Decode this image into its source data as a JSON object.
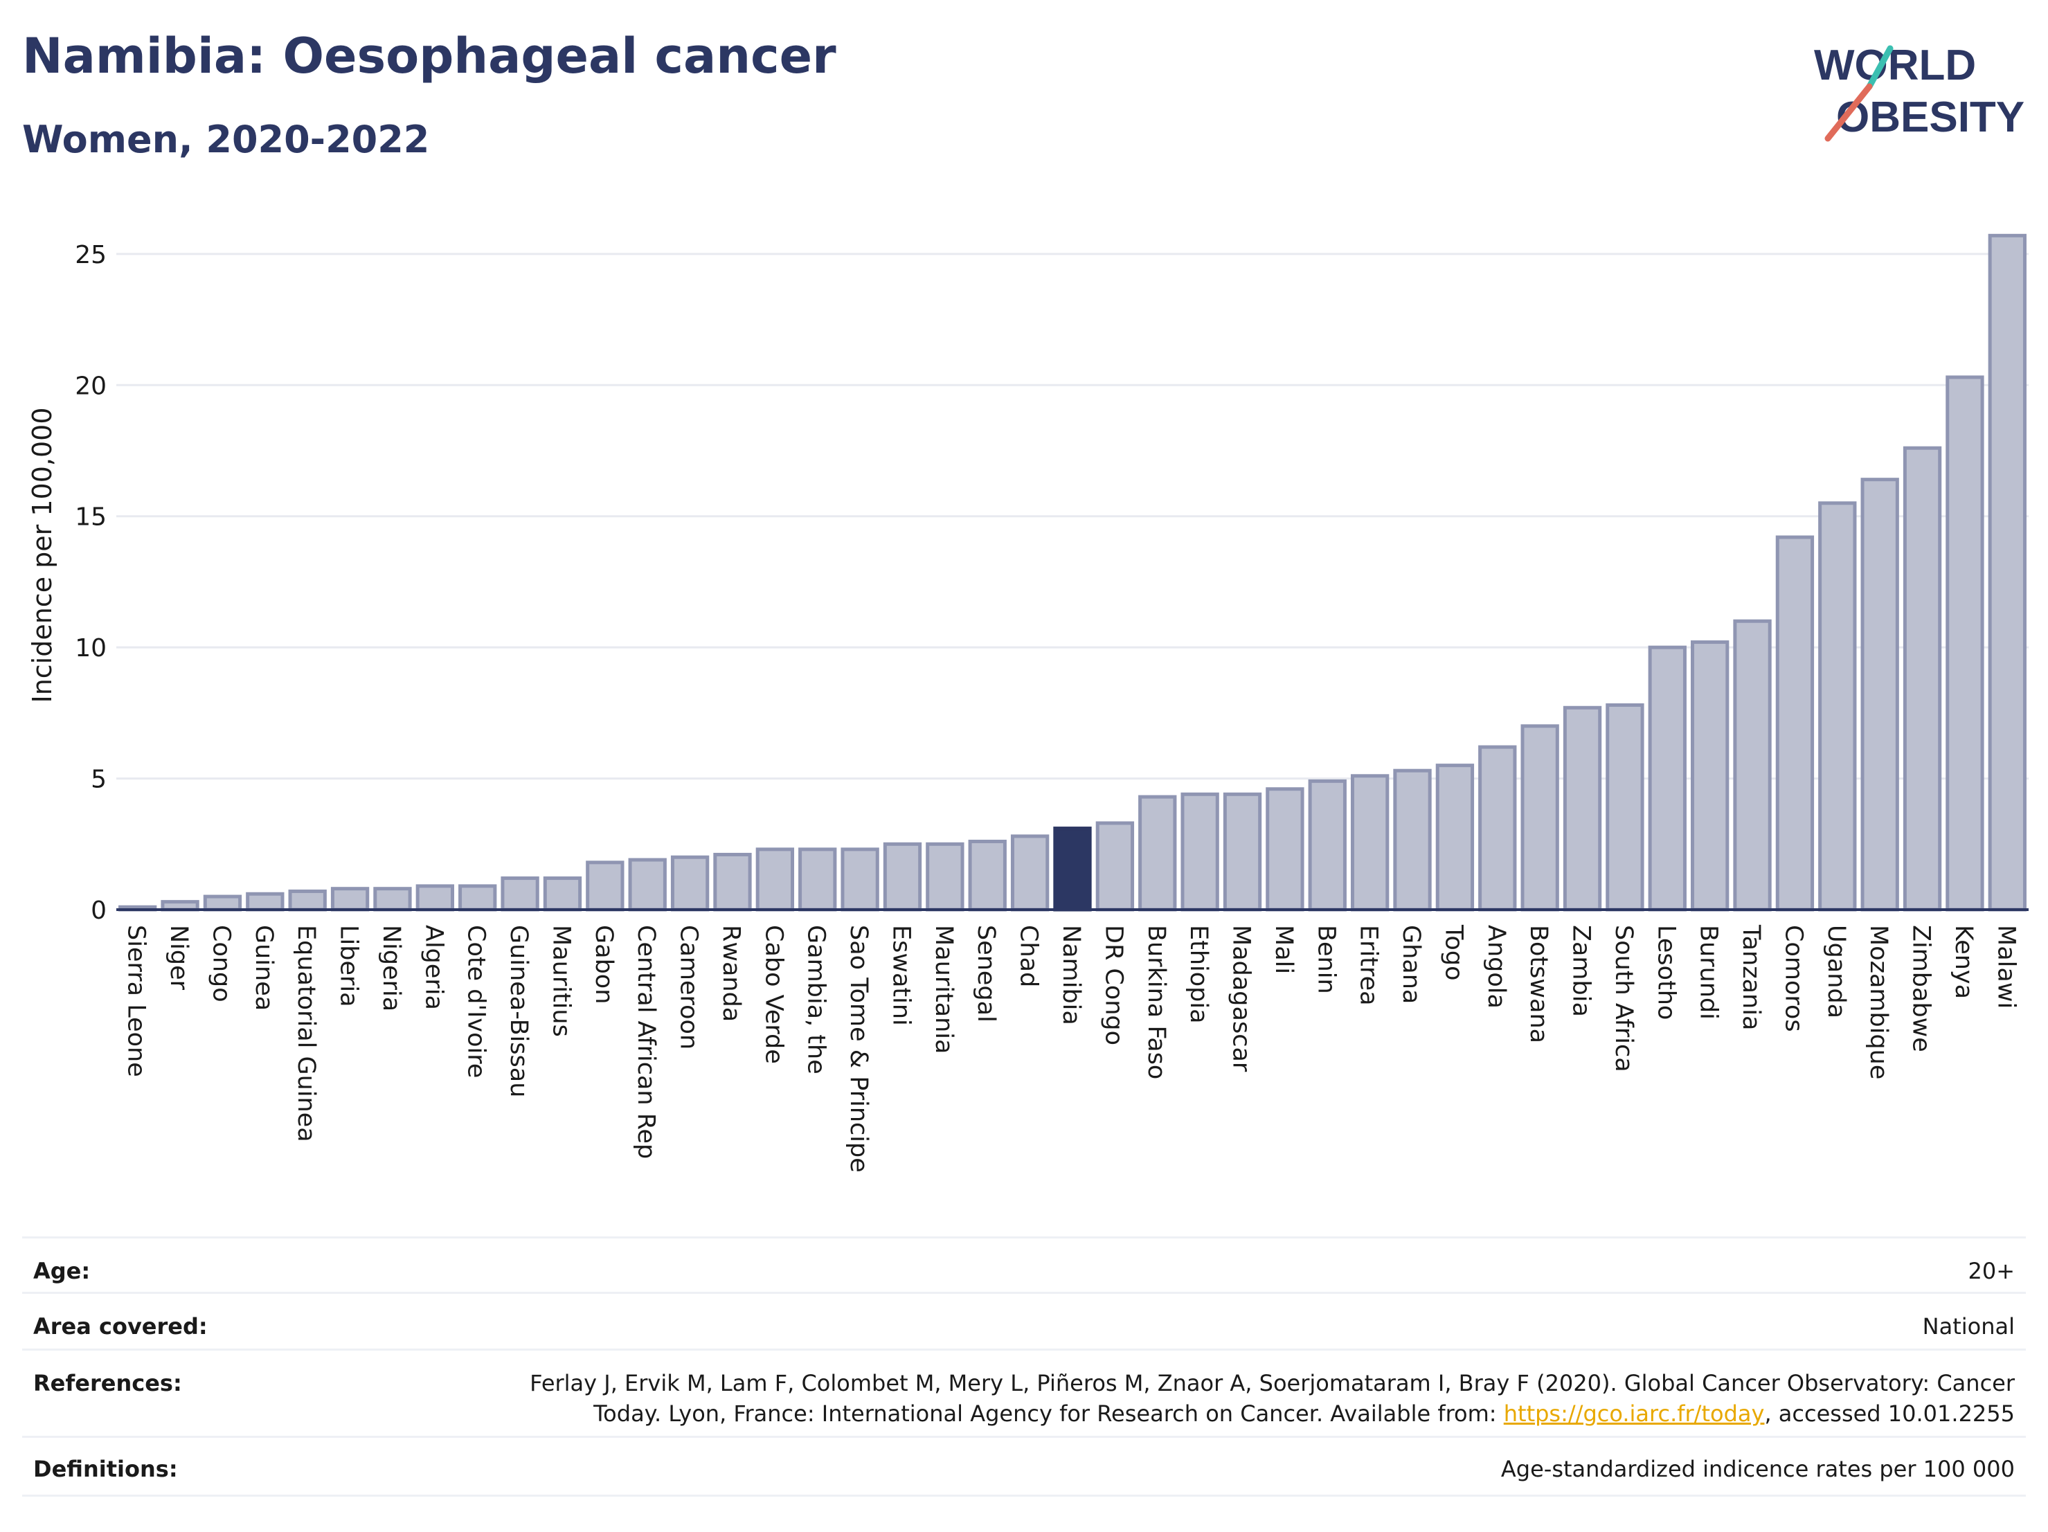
{
  "header": {
    "title": "Namibia: Oesophageal cancer",
    "subtitle": "Women, 2020-2022"
  },
  "logo": {
    "line1": "WORLD",
    "line2": "OBESITY",
    "text_color": "#2c3763",
    "accent_teal": "#3bbfb1",
    "accent_red": "#e06b5a"
  },
  "chart_data": {
    "type": "bar",
    "ylabel": "Incidence per 100,000",
    "xlabel": "",
    "ylim": [
      0,
      26.5
    ],
    "yticks": [
      0,
      5,
      10,
      15,
      20,
      25
    ],
    "highlight": "Namibia",
    "colors": {
      "bar": "#bcc0d0",
      "bar_edge": "#8f95b2",
      "highlight": "#2c3763",
      "grid": "#e8eaf0",
      "axis": "#2c3763"
    },
    "categories": [
      "Sierra Leone",
      "Niger",
      "Congo",
      "Guinea",
      "Equatorial Guinea",
      "Liberia",
      "Nigeria",
      "Algeria",
      "Cote d'Ivoire",
      "Guinea-Bissau",
      "Mauritius",
      "Gabon",
      "Central African Rep",
      "Cameroon",
      "Rwanda",
      "Cabo Verde",
      "Gambia, the",
      "Sao Tome & Principe",
      "Eswatini",
      "Mauritania",
      "Senegal",
      "Chad",
      "Namibia",
      "DR Congo",
      "Burkina Faso",
      "Ethiopia",
      "Madagascar",
      "Mali",
      "Benin",
      "Eritrea",
      "Ghana",
      "Togo",
      "Angola",
      "Botswana",
      "Zambia",
      "South Africa",
      "Lesotho",
      "Burundi",
      "Tanzania",
      "Comoros",
      "Uganda",
      "Mozambique",
      "Zimbabwe",
      "Kenya",
      "Malawi"
    ],
    "values": [
      0.1,
      0.3,
      0.5,
      0.6,
      0.7,
      0.8,
      0.8,
      0.9,
      0.9,
      1.2,
      1.2,
      1.8,
      1.9,
      2.0,
      2.1,
      2.3,
      2.3,
      2.3,
      2.5,
      2.5,
      2.6,
      2.8,
      3.1,
      3.3,
      4.3,
      4.4,
      4.4,
      4.6,
      4.9,
      5.1,
      5.3,
      5.5,
      6.2,
      7.0,
      7.7,
      7.8,
      10.0,
      10.2,
      11.0,
      14.2,
      15.5,
      16.4,
      17.6,
      20.3,
      25.7
    ]
  },
  "meta": {
    "age_label": "Age:",
    "age_value": "20+",
    "area_label": "Area covered:",
    "area_value": "National",
    "references_label": "References:",
    "references_line1": "Ferlay J, Ervik M, Lam F, Colombet M, Mery L, Piñeros M, Znaor A, Soerjomataram I, Bray F (2020). Global Cancer Observatory: Cancer",
    "references_line2_pre": "Today. Lyon, France: International Agency for Research on Cancer. Available from: ",
    "references_link": "https://gco.iarc.fr/today",
    "references_line2_post": ", accessed 10.01.2255",
    "definitions_label": "Definitions:",
    "definitions_value": "Age-standardized indicence rates per 100 000"
  }
}
